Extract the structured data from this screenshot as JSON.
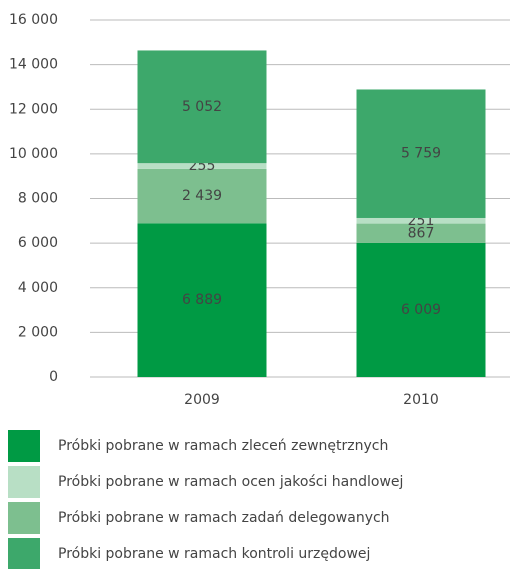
{
  "chart_data": {
    "type": "stacked_bar",
    "categories": [
      "2009",
      "2010"
    ],
    "series": [
      {
        "name": "Próbki pobrane w ramach zleceń zewnętrznych",
        "color": "#009a44",
        "values": [
          6889,
          6009
        ],
        "value_labels": [
          "6 889",
          "6 009"
        ]
      },
      {
        "name": "Próbki pobrane w ramach ocen jakości handlowej",
        "color": "#b8dfc5",
        "values": [
          255,
          251
        ],
        "value_labels": [
          "255",
          "251"
        ]
      },
      {
        "name": "Próbki pobrane w ramach zadań delegowanych",
        "color": "#7dbf8f",
        "values": [
          2439,
          867
        ],
        "value_labels": [
          "2 439",
          "867"
        ]
      },
      {
        "name": "Próbki pobrane w ramach kontroli urzędowej",
        "color": "#3da86b",
        "values": [
          5052,
          5759
        ],
        "value_labels": [
          "5 052",
          "5 759"
        ]
      }
    ],
    "ylim": [
      0,
      16000
    ],
    "yticks": [
      0,
      {
        "value": 2000,
        "label": "2 000"
      },
      {
        "value": 4000,
        "label": "4 000"
      },
      {
        "value": 6000,
        "label": "6 000"
      },
      {
        "value": 8000,
        "label": "8 000"
      },
      {
        "value": 10000,
        "label": "10 000"
      },
      {
        "value": 12000,
        "label": "12 000"
      },
      {
        "value": 14000,
        "label": "14 000"
      },
      {
        "value": 16000,
        "label": "16 000"
      }
    ],
    "grid": true
  }
}
